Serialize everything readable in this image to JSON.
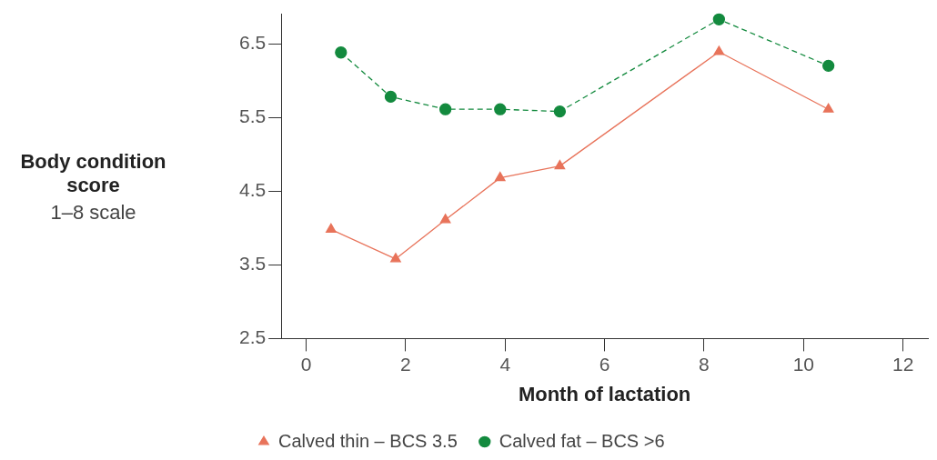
{
  "chart_data": {
    "type": "line",
    "xlabel": "Month of lactation",
    "ylabel": "Body condition score",
    "annotations": [
      "1–8 scale"
    ],
    "xlim": [
      -0.5,
      12.5
    ],
    "xticks": [
      0,
      2,
      4,
      6,
      8,
      10,
      12
    ],
    "ylim": [
      2.5,
      6.9
    ],
    "yticks": [
      2.5,
      3.5,
      4.5,
      5.5,
      6.5
    ],
    "grid": false,
    "legend": "bottom left",
    "series": [
      {
        "name": "Calved thin – BCS 3.5",
        "color": "#e8735a",
        "marker": "triangle",
        "line_style": "solid",
        "x": [
          0.5,
          1.8,
          2.8,
          3.9,
          5.1,
          8.3,
          10.5
        ],
        "values": [
          3.98,
          3.58,
          4.11,
          4.68,
          4.84,
          6.39,
          5.61
        ]
      },
      {
        "name": "Calved fat – BCS >6",
        "color": "#138a3e",
        "marker": "circle",
        "line_style": "dashed",
        "x": [
          0.7,
          1.7,
          2.8,
          3.9,
          5.1,
          8.3,
          10.5
        ],
        "values": [
          6.38,
          5.78,
          5.61,
          5.61,
          5.58,
          6.83,
          6.2
        ]
      }
    ]
  }
}
